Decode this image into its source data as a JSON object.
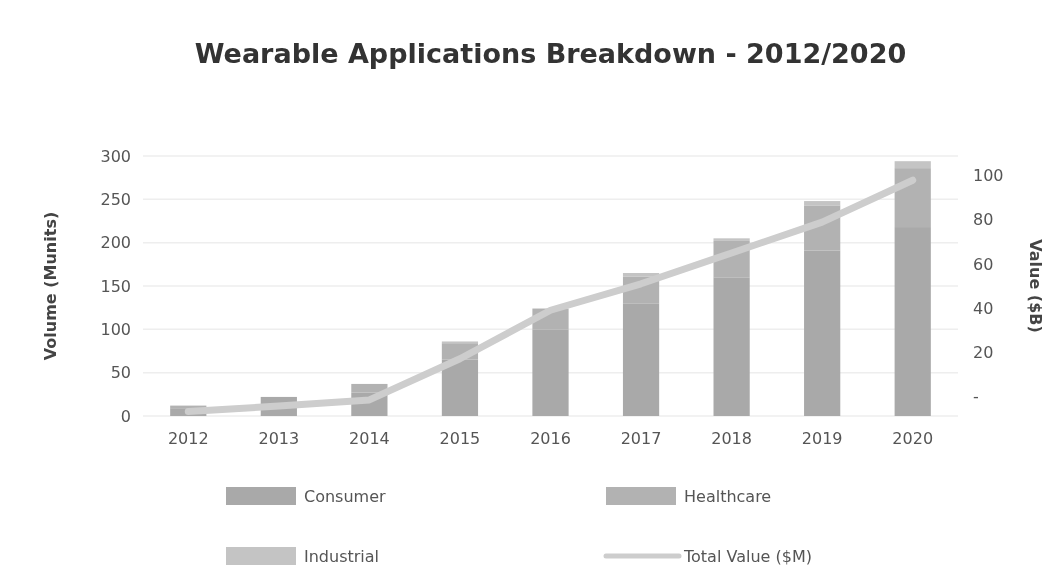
{
  "chart_data": {
    "type": "bar",
    "title": "Wearable Applications Breakdown - 2012/2020",
    "ylabel": "Volume (Munits)",
    "y2label": "Value ($B)",
    "categories": [
      "2012",
      "2013",
      "2014",
      "2015",
      "2016",
      "2017",
      "2018",
      "2019",
      "2020"
    ],
    "stacked": true,
    "series": [
      {
        "name": "Consumer",
        "color": "#a9a9a9",
        "values": [
          9,
          22,
          27,
          65,
          100,
          130,
          160,
          191,
          218
        ]
      },
      {
        "name": "Healthcare",
        "color": "#b2b2b2",
        "values": [
          3,
          null,
          10,
          19,
          24,
          31,
          42,
          52,
          68
        ]
      },
      {
        "name": "Industrial",
        "color": "#c4c4c4",
        "values": [
          null,
          null,
          null,
          2,
          null,
          4,
          3,
          5,
          8
        ]
      },
      {
        "name": "Total Value ($M)",
        "type": "line",
        "axis": "y2",
        "color": "#cdcdcd",
        "values": [
          -7,
          -4.5,
          -1.7,
          17,
          39,
          51,
          65,
          79,
          98
        ]
      }
    ],
    "ylim": [
      0,
      300
    ],
    "yticks": [
      0,
      50,
      100,
      150,
      200,
      250,
      300
    ],
    "y2lim": [
      -9,
      109
    ],
    "y2ticks": [
      {
        "value": 0,
        "label": "-"
      },
      20,
      40,
      60,
      80,
      100
    ],
    "grid": "y",
    "legend": "bottom",
    "marker": "none"
  }
}
